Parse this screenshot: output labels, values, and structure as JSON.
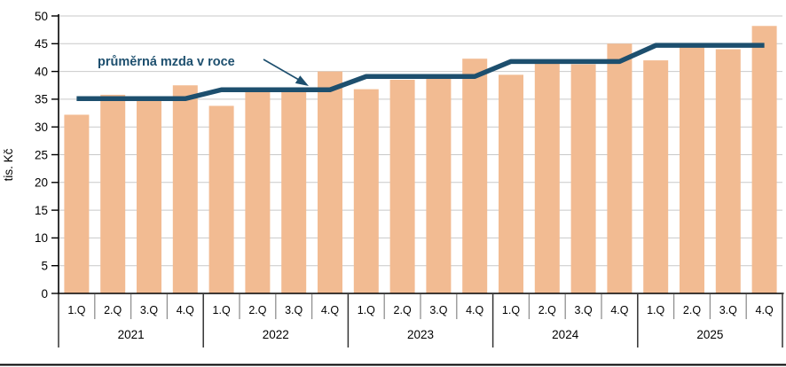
{
  "chart_data": {
    "type": "bar",
    "title": "",
    "ylabel": "tis. Kč",
    "ylim": [
      0,
      50
    ],
    "ytick_step": 5,
    "grid": true,
    "legend_position": "none",
    "annotation": "průměrná mzda v roce",
    "groups": [
      {
        "year": "2021",
        "quarters": [
          "1.Q",
          "2.Q",
          "3.Q",
          "4.Q"
        ],
        "values": [
          32.2,
          35.8,
          34.9,
          37.5
        ],
        "year_average": 35.1
      },
      {
        "year": "2022",
        "quarters": [
          "1.Q",
          "2.Q",
          "3.Q",
          "4.Q"
        ],
        "values": [
          33.8,
          36.4,
          36.3,
          40.0
        ],
        "year_average": 36.7
      },
      {
        "year": "2023",
        "quarters": [
          "1.Q",
          "2.Q",
          "3.Q",
          "4.Q"
        ],
        "values": [
          36.8,
          38.5,
          38.7,
          42.3
        ],
        "year_average": 39.1
      },
      {
        "year": "2024",
        "quarters": [
          "1.Q",
          "2.Q",
          "3.Q",
          "4.Q"
        ],
        "values": [
          39.4,
          41.4,
          41.3,
          45.0
        ],
        "year_average": 41.8
      },
      {
        "year": "2025",
        "quarters": [
          "1.Q",
          "2.Q",
          "3.Q",
          "4.Q"
        ],
        "values": [
          42.0,
          44.5,
          44.0,
          48.2
        ],
        "year_average": 44.7
      }
    ],
    "line_series": {
      "name": "průměrná mzda v roce",
      "values": [
        35.1,
        36.7,
        39.1,
        41.8,
        44.7
      ]
    },
    "yticks": [
      0,
      5,
      10,
      15,
      20,
      25,
      30,
      35,
      40,
      45,
      50
    ],
    "colors": {
      "bar": "#F2BB92",
      "line": "#1D4F6E",
      "annotation_text": "#1D4F6E",
      "grid": "#C9C9C9",
      "quarter_tick": "#909090",
      "year_tick": "#333333",
      "axis": "#000000",
      "label_text": "#000000",
      "background": "#FFFFFF",
      "bottom_rule": "#000000"
    }
  }
}
